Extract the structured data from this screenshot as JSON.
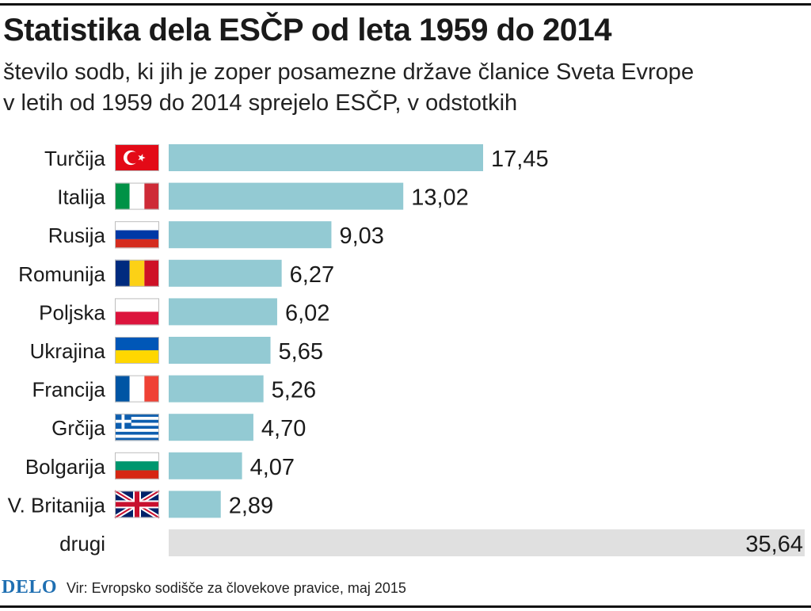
{
  "title": "Statistika dela ESČP od leta 1959 do 2014",
  "subtitle": "število sodb, ki jih je zoper posamezne države članice Sveta Evrope\nv letih od 1959 do 2014 sprejelo ESČP, v odstotkih",
  "footer": {
    "logo": "DELO",
    "source": "Vir: Evropsko sodišče za človekove pravice, maj 2015"
  },
  "colors": {
    "bar": "#93cad3",
    "bar_other": "#e0e0e0",
    "text": "#1a1a1a",
    "logo": "#1f6fb2"
  },
  "chart_data": {
    "type": "bar",
    "orientation": "horizontal",
    "title": "Statistika dela ESČP od leta 1959 do 2014",
    "xlabel": "",
    "ylabel": "",
    "unit": "%",
    "categories": [
      "Turčija",
      "Italija",
      "Rusija",
      "Romunija",
      "Poljska",
      "Ukrajina",
      "Francija",
      "Grčija",
      "Bolgarija",
      "V. Britanija",
      "drugi"
    ],
    "values": [
      17.45,
      13.02,
      9.03,
      6.27,
      6.02,
      5.65,
      5.26,
      4.7,
      4.07,
      2.89,
      35.64
    ],
    "value_labels": [
      "17,45",
      "13,02",
      "9,03",
      "6,27",
      "6,02",
      "5,65",
      "5,26",
      "4,70",
      "4,07",
      "2,89",
      "35,64"
    ],
    "flags": [
      "turkey-flag",
      "italy-flag",
      "russia-flag",
      "romania-flag",
      "poland-flag",
      "ukraine-flag",
      "france-flag",
      "greece-flag",
      "bulgaria-flag",
      "uk-flag",
      ""
    ],
    "xlim": [
      0,
      17.45
    ],
    "grid": false,
    "legend": "none"
  }
}
